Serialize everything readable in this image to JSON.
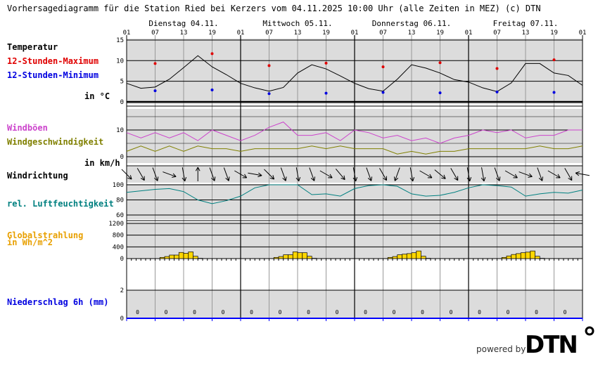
{
  "title": "Vorhersagediagramm für die Station Ried bei Kerzers vom 04.11.2025 10:00 Uhr (alle Zeiten in MEZ)   (c) DTN",
  "days": [
    "Dienstag 04.11.",
    "Mittwoch 05.11.",
    "Donnerstag 06.11.",
    "Freitag 07.11."
  ],
  "hour_ticks": [
    "01",
    "07",
    "13",
    "19",
    "01",
    "07",
    "13",
    "19",
    "01",
    "07",
    "13",
    "19",
    "01",
    "07",
    "13",
    "19",
    "01"
  ],
  "labels": {
    "temp": "Temperatur",
    "tmax": "12-Stunden-Maximum",
    "tmin": "12-Stunden-Minimum",
    "temp_unit": "in °C",
    "gust": "Windböen",
    "wind": "Windgeschwindigkeit",
    "wind_unit": "in km/h",
    "dir": "Windrichtung",
    "hum": "rel. Luftfeuchtigkeit",
    "rad": "Globalstrahlung\nin Wh/m^2",
    "rad1": "Globalstrahlung",
    "rad2": "in Wh/m^2",
    "precip": "Niederschlag 6h (mm)"
  },
  "colors": {
    "tmax": "#e00000",
    "tmin": "#0000e0",
    "gust": "#cc44cc",
    "wind": "#808000",
    "hum": "#008080",
    "rad": "#e8a000",
    "bar": "#ffd700",
    "panel": "#dcdcdc"
  },
  "powered": "powered by",
  "logo": "DTN",
  "chart_data": {
    "type": "line",
    "x_unit": "hours from 04.11. 01:00, 3-hourly",
    "temperature": {
      "yticks": [
        "15",
        "10",
        "5",
        "0"
      ],
      "ylim": [
        0,
        15
      ],
      "values": [
        4.5,
        3.3,
        3.6,
        5.5,
        8.3,
        11.2,
        8.5,
        6.6,
        4.5,
        3.4,
        2.6,
        3.5,
        7,
        9,
        8,
        6.3,
        4.5,
        3.2,
        2.6,
        5.5,
        9,
        8.2,
        7,
        5.4,
        4.8,
        3.4,
        2.5,
        4.6,
        9.3,
        9.3,
        7,
        6.4,
        4
      ],
      "max": [
        9.3,
        11.7,
        8.8,
        9.4,
        8.5,
        9.5,
        8.1,
        10.2
      ],
      "min": [
        2.7,
        2.9,
        2.0,
        2.1,
        2.3,
        2.2,
        2.4,
        2.3
      ]
    },
    "wind": {
      "yticks": [
        "10",
        "0"
      ],
      "ylim": [
        -5,
        20
      ],
      "gusts": [
        9,
        7,
        9,
        7,
        9,
        6,
        10,
        8,
        6,
        8,
        11,
        13,
        8,
        8,
        9,
        6,
        10,
        9,
        7,
        8,
        6,
        7,
        5,
        7,
        8,
        10,
        9,
        10,
        7,
        8,
        8,
        10,
        10
      ],
      "speed": [
        2,
        4,
        2,
        4,
        2,
        4,
        3,
        3,
        2,
        3,
        3,
        3,
        3,
        4,
        3,
        4,
        3,
        3,
        3,
        1,
        2,
        1,
        2,
        2,
        3,
        3,
        3,
        3,
        3,
        4,
        3,
        3,
        4
      ]
    },
    "wind_direction_deg": [
      315,
      330,
      340,
      290,
      350,
      180,
      340,
      340,
      300,
      280,
      315,
      340,
      350,
      340,
      300,
      320,
      350,
      340,
      330,
      20,
      350,
      300,
      310,
      330,
      350,
      350,
      340,
      300,
      290,
      340,
      300,
      330,
      100
    ],
    "humidity": {
      "yticks": [
        "100",
        "80",
        "60"
      ],
      "ylim": [
        55,
        100
      ],
      "values": [
        90,
        92,
        94,
        95,
        91,
        80,
        75,
        79,
        85,
        96,
        100,
        100,
        100,
        87,
        88,
        85,
        95,
        99,
        100,
        98,
        88,
        85,
        86,
        90,
        96,
        100,
        99,
        97,
        85,
        88,
        90,
        89,
        93
      ]
    },
    "radiation": {
      "yticks": [
        "1200",
        "800",
        "400",
        "0"
      ],
      "ylim": [
        0,
        1200
      ],
      "hourly": [
        {
          "d": 0,
          "v": [
            40,
            70,
            120,
            120,
            210,
            180,
            230,
            80,
            10
          ]
        },
        {
          "d": 1,
          "v": [
            40,
            70,
            130,
            130,
            230,
            200,
            200,
            80,
            10
          ]
        },
        {
          "d": 2,
          "v": [
            40,
            70,
            130,
            150,
            170,
            200,
            260,
            80,
            10
          ]
        },
        {
          "d": 3,
          "v": [
            40,
            90,
            140,
            170,
            200,
            220,
            260,
            80,
            10
          ]
        }
      ]
    },
    "precipitation": {
      "yticks": [
        "2",
        "0"
      ],
      "ylim": [
        0,
        4
      ],
      "values": [
        "0",
        "0",
        "0",
        "0",
        "0",
        "0",
        "0",
        "0",
        "0",
        "0",
        "0",
        "0",
        "0",
        "0",
        "0",
        "0"
      ]
    }
  }
}
